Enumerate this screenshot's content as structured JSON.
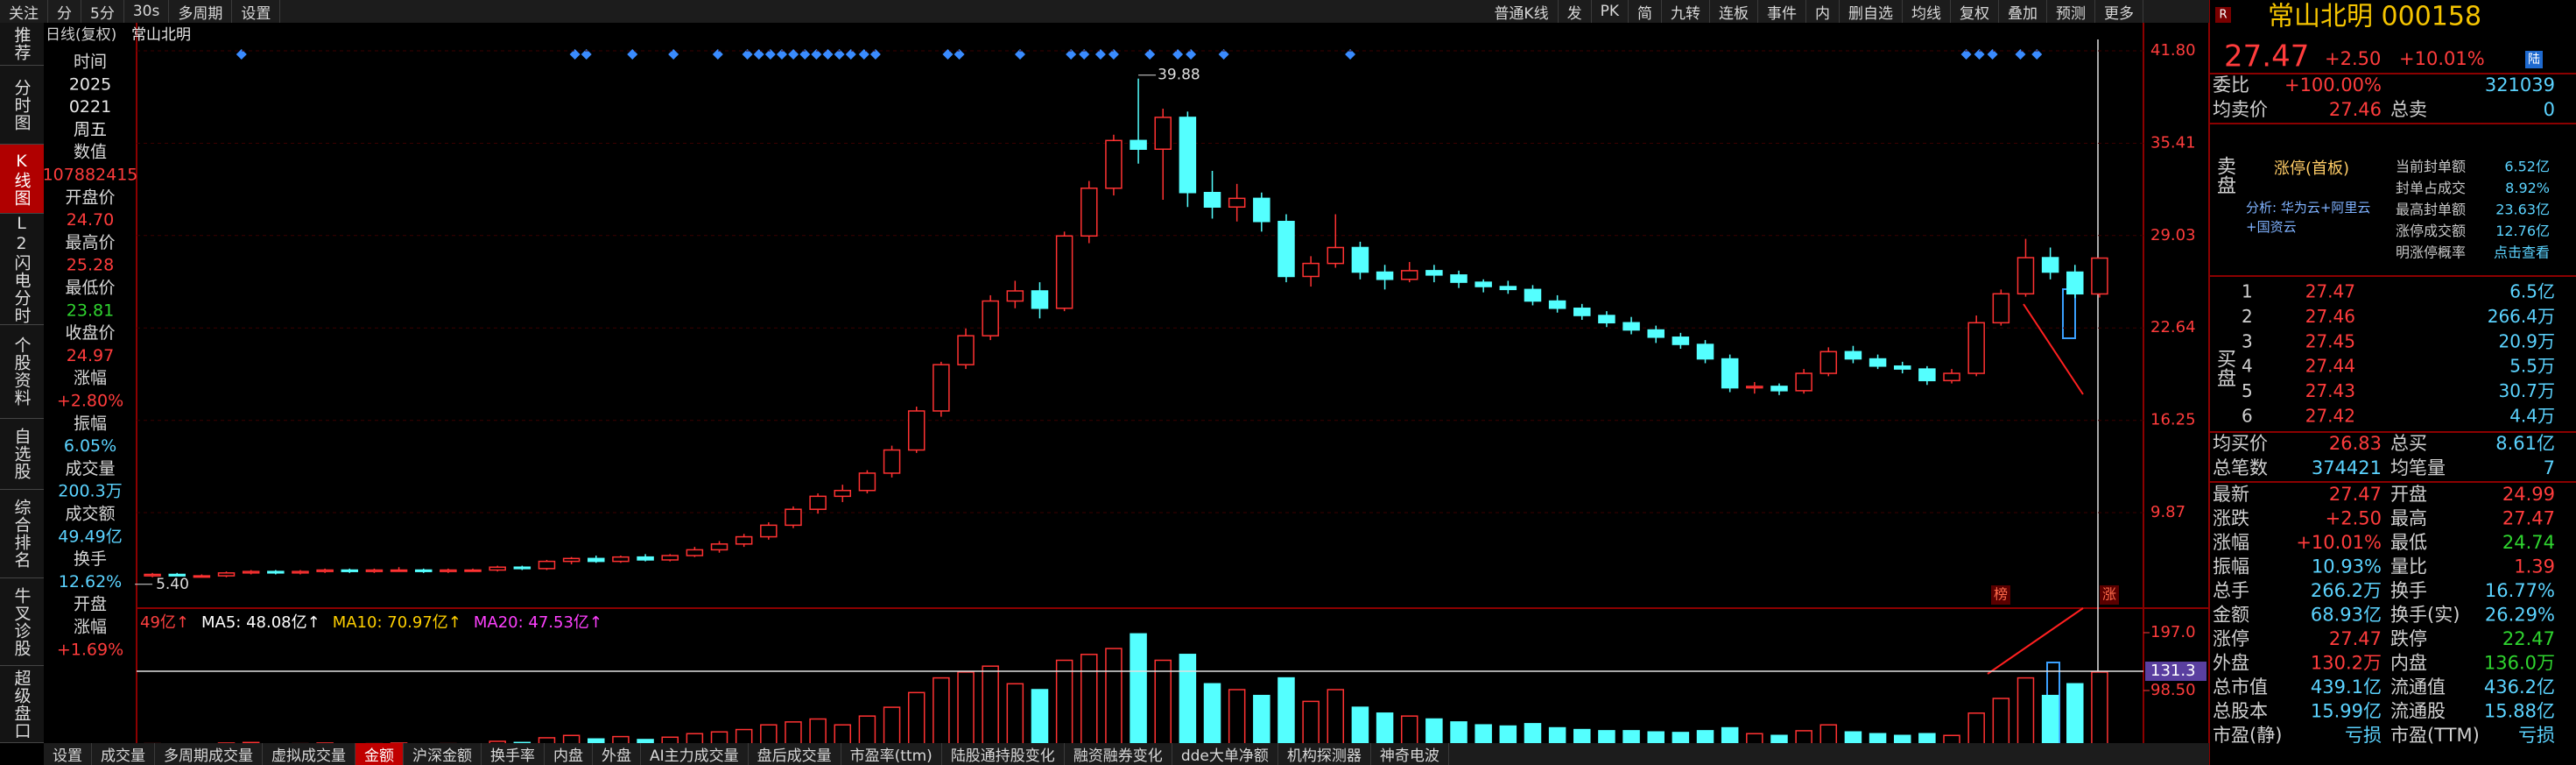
{
  "toolbar": {
    "left": [
      "关注",
      "分",
      "5分",
      "30s",
      "多周期",
      "设置"
    ],
    "right": [
      "普通K线",
      "发",
      "PK",
      "简",
      "九转",
      "连板",
      "事件",
      "内",
      "删自选",
      "均线",
      "复权",
      "叠加",
      "预测",
      "更多"
    ]
  },
  "side_tabs": {
    "items": [
      "推荐",
      "分时图",
      "K线图",
      "L2闪电分时",
      "个股资料",
      "自选股",
      "综合排名",
      "牛叉诊股",
      "超级盘口"
    ],
    "active": 2
  },
  "chart_header": {
    "period": "日线(复权)",
    "name": "常山北明"
  },
  "info_panel": [
    {
      "text": "时间",
      "color": "#d8d8d8"
    },
    {
      "text": "2025",
      "color": "#e8e8e8"
    },
    {
      "text": "0221",
      "color": "#e8e8e8"
    },
    {
      "text": "周五",
      "color": "#e8e8e8"
    },
    {
      "text": "数值",
      "color": "#d8d8d8"
    },
    {
      "text": "107882415",
      "color": "#ff3c3c"
    },
    {
      "text": "开盘价",
      "color": "#d8d8d8"
    },
    {
      "text": "24.70",
      "color": "#ff3c3c"
    },
    {
      "text": "最高价",
      "color": "#d8d8d8"
    },
    {
      "text": "25.28",
      "color": "#ff3c3c"
    },
    {
      "text": "最低价",
      "color": "#d8d8d8"
    },
    {
      "text": "23.81",
      "color": "#2fd52f"
    },
    {
      "text": "收盘价",
      "color": "#d8d8d8"
    },
    {
      "text": "24.97",
      "color": "#ff3c3c"
    },
    {
      "text": "涨幅",
      "color": "#d8d8d8"
    },
    {
      "text": "+2.80%",
      "color": "#ff3c3c"
    },
    {
      "text": "振幅",
      "color": "#d8d8d8"
    },
    {
      "text": "6.05%",
      "color": "#5bd3ff"
    },
    {
      "text": "成交量",
      "color": "#d8d8d8"
    },
    {
      "text": "200.3万",
      "color": "#5bd3ff"
    },
    {
      "text": "成交额",
      "color": "#d8d8d8"
    },
    {
      "text": "49.49亿",
      "color": "#5bd3ff"
    },
    {
      "text": "换手",
      "color": "#d8d8d8"
    },
    {
      "text": "12.62%",
      "color": "#5bd3ff"
    },
    {
      "text": "开盘",
      "color": "#d8d8d8"
    },
    {
      "text": "涨幅",
      "color": "#d8d8d8"
    },
    {
      "text": "+1.69%",
      "color": "#ff3c3c"
    }
  ],
  "kline": {
    "price_ticks": [
      {
        "value": 41.8,
        "label": "41.80"
      },
      35.41,
      29.03,
      22.64,
      16.25,
      9.87
    ],
    "high_label": "39.88",
    "low_label": "5.40",
    "markers": [
      "榜",
      "涨"
    ],
    "candles": [
      [
        5.5,
        5.7,
        5.4,
        5.6
      ],
      [
        5.6,
        5.7,
        5.5,
        5.5
      ],
      [
        5.5,
        5.6,
        5.4,
        5.5
      ],
      [
        5.5,
        5.8,
        5.4,
        5.7
      ],
      [
        5.7,
        5.9,
        5.6,
        5.8
      ],
      [
        5.8,
        5.9,
        5.6,
        5.7
      ],
      [
        5.7,
        5.9,
        5.6,
        5.8
      ],
      [
        5.8,
        6.0,
        5.7,
        5.9
      ],
      [
        5.9,
        6.0,
        5.7,
        5.8
      ],
      [
        5.8,
        6.0,
        5.7,
        5.9
      ],
      [
        5.9,
        6.1,
        5.8,
        5.9
      ],
      [
        5.9,
        6.0,
        5.7,
        5.8
      ],
      [
        5.8,
        6.0,
        5.7,
        5.9
      ],
      [
        5.9,
        6.0,
        5.8,
        5.9
      ],
      [
        5.9,
        6.2,
        5.8,
        6.1
      ],
      [
        6.1,
        6.2,
        5.9,
        6.0
      ],
      [
        6.0,
        6.6,
        5.9,
        6.5
      ],
      [
        6.5,
        6.8,
        6.3,
        6.7
      ],
      [
        6.7,
        6.9,
        6.4,
        6.5
      ],
      [
        6.5,
        6.9,
        6.4,
        6.8
      ],
      [
        6.8,
        7.0,
        6.5,
        6.6
      ],
      [
        6.6,
        7.0,
        6.5,
        6.9
      ],
      [
        6.9,
        7.5,
        6.8,
        7.3
      ],
      [
        7.3,
        7.9,
        7.1,
        7.7
      ],
      [
        7.7,
        8.4,
        7.5,
        8.2
      ],
      [
        8.2,
        9.2,
        8.0,
        9.0
      ],
      [
        9.0,
        10.3,
        8.8,
        10.1
      ],
      [
        10.1,
        11.2,
        9.8,
        11.0
      ],
      [
        11.0,
        11.8,
        10.6,
        11.4
      ],
      [
        11.4,
        12.8,
        11.2,
        12.6
      ],
      [
        12.6,
        14.5,
        12.3,
        14.2
      ],
      [
        14.2,
        17.2,
        14.0,
        16.9
      ],
      [
        16.9,
        20.3,
        16.5,
        20.1
      ],
      [
        20.1,
        22.6,
        19.8,
        22.1
      ],
      [
        22.1,
        24.9,
        21.8,
        24.5
      ],
      [
        24.5,
        25.9,
        24.0,
        25.2
      ],
      [
        25.2,
        25.8,
        23.3,
        24.0
      ],
      [
        24.0,
        29.3,
        23.8,
        29.0
      ],
      [
        29.0,
        32.8,
        28.5,
        32.3
      ],
      [
        32.3,
        36.0,
        31.8,
        35.6
      ],
      [
        35.6,
        39.88,
        34.0,
        35.0
      ],
      [
        35.0,
        37.8,
        31.5,
        37.2
      ],
      [
        37.2,
        37.6,
        31.0,
        32.0
      ],
      [
        32.0,
        33.5,
        30.2,
        31.0
      ],
      [
        31.0,
        32.6,
        30.0,
        31.6
      ],
      [
        31.6,
        32.0,
        29.3,
        30.0
      ],
      [
        30.0,
        30.5,
        25.8,
        26.2
      ],
      [
        26.2,
        27.6,
        25.5,
        27.1
      ],
      [
        27.1,
        30.5,
        26.8,
        28.2
      ],
      [
        28.2,
        28.6,
        26.0,
        26.5
      ],
      [
        26.5,
        27.0,
        25.3,
        26.0
      ],
      [
        26.0,
        27.2,
        25.8,
        26.6
      ],
      [
        26.6,
        27.0,
        25.8,
        26.3
      ],
      [
        26.3,
        26.6,
        25.4,
        25.8
      ],
      [
        25.8,
        26.0,
        25.1,
        25.5
      ],
      [
        25.5,
        25.9,
        25.0,
        25.3
      ],
      [
        25.3,
        25.6,
        24.2,
        24.5
      ],
      [
        24.5,
        24.9,
        23.7,
        24.0
      ],
      [
        24.0,
        24.3,
        23.2,
        23.5
      ],
      [
        23.5,
        23.8,
        22.7,
        23.0
      ],
      [
        23.0,
        23.4,
        22.2,
        22.5
      ],
      [
        22.5,
        22.8,
        21.6,
        22.0
      ],
      [
        22.0,
        22.3,
        21.2,
        21.5
      ],
      [
        21.5,
        21.8,
        20.2,
        20.5
      ],
      [
        20.5,
        20.8,
        18.2,
        18.5
      ],
      [
        18.5,
        18.9,
        18.1,
        18.6
      ],
      [
        18.6,
        18.8,
        18.0,
        18.3
      ],
      [
        18.3,
        19.8,
        18.1,
        19.5
      ],
      [
        19.5,
        21.3,
        19.3,
        21.0
      ],
      [
        21.0,
        21.4,
        20.2,
        20.5
      ],
      [
        20.5,
        20.8,
        19.8,
        20.0
      ],
      [
        20.0,
        20.3,
        19.5,
        19.8
      ],
      [
        19.8,
        20.0,
        18.7,
        19.0
      ],
      [
        19.0,
        19.8,
        18.8,
        19.5
      ],
      [
        19.5,
        23.5,
        19.3,
        23.0
      ],
      [
        23.0,
        25.3,
        22.8,
        25.0
      ],
      [
        25.0,
        28.8,
        24.8,
        27.5
      ],
      [
        27.5,
        28.2,
        26.0,
        26.5
      ],
      [
        26.5,
        27.0,
        24.7,
        25.0
      ],
      [
        24.99,
        27.47,
        24.74,
        27.47
      ]
    ]
  },
  "volume": {
    "indicators": [
      {
        "text": "49亿↑",
        "color": "#ff4040"
      },
      {
        "text": "MA5: 48.08亿↑",
        "color": "#ffffff"
      },
      {
        "text": "MA10: 70.97亿↑",
        "color": "#ffd000"
      },
      {
        "text": "MA20: 47.53亿↑",
        "color": "#ff40ff"
      }
    ],
    "ticks": [
      {
        "value": 197,
        "label": "197.0"
      },
      {
        "value": 98.5,
        "label": "98.50"
      }
    ],
    "cursor": 131.3,
    "values": [
      8,
      6,
      7,
      9,
      10,
      7,
      8,
      9,
      7,
      8,
      9,
      7,
      8,
      7,
      12,
      10,
      18,
      22,
      16,
      20,
      15,
      19,
      25,
      28,
      32,
      40,
      45,
      50,
      40,
      55,
      70,
      95,
      120,
      130,
      140,
      110,
      100,
      150,
      160,
      170,
      195,
      150,
      160,
      110,
      100,
      90,
      120,
      80,
      100,
      70,
      60,
      55,
      50,
      45,
      40,
      38,
      42,
      35,
      32,
      30,
      30,
      28,
      27,
      30,
      35,
      25,
      22,
      30,
      40,
      28,
      25,
      22,
      25,
      22,
      60,
      85,
      120,
      90,
      110,
      130
    ]
  },
  "bottom_tabs": {
    "items": [
      "设置",
      "成交量",
      "多周期成交量",
      "虚拟成交量",
      "金额",
      "沪深金额",
      "换手率",
      "内盘",
      "外盘",
      "AI主力成交量",
      "盘后成交量",
      "市盈率(ttm)",
      "陆股通持股变化",
      "融资融券变化",
      "dde大单净额",
      "机构探测器",
      "神奇电波"
    ],
    "active": 4
  },
  "quote": {
    "badge": "R",
    "title": "常山北明 000158",
    "price": "27.47",
    "change": "+2.50",
    "change_pct": "+10.01%",
    "tag": "陆",
    "rows_top": [
      {
        "cells": [
          "委比",
          "+100.00%",
          "",
          "321039"
        ],
        "colors": [
          "#ff3c3c",
          "#5bd3ff"
        ]
      },
      {
        "cells": [
          "均卖价",
          "27.46",
          "总卖",
          "0"
        ],
        "colors": [
          "#ff3c3c",
          "#5bd3ff"
        ]
      }
    ],
    "sell_label": "卖盘",
    "limit": {
      "title": "涨停(首板)",
      "analysis": "分析: 华为云+阿里云+国资云",
      "items": [
        [
          "当前封单额",
          "6.52亿"
        ],
        [
          "封单占成交",
          "8.92%"
        ],
        [
          "最高封单额",
          "23.63亿"
        ],
        [
          "涨停成交额",
          "12.76亿"
        ],
        [
          "明涨停概率",
          "点击查看"
        ]
      ]
    },
    "buy_label": "买盘",
    "bids": [
      [
        "1",
        "27.47",
        "6.5亿"
      ],
      [
        "2",
        "27.46",
        "266.4万"
      ],
      [
        "3",
        "27.45",
        "20.9万"
      ],
      [
        "4",
        "27.44",
        "5.5万"
      ],
      [
        "5",
        "27.43",
        "30.7万"
      ],
      [
        "6",
        "27.42",
        "4.4万"
      ]
    ],
    "rows_mid": [
      {
        "cells": [
          "均买价",
          "26.83",
          "总买",
          "8.61亿"
        ],
        "colors": [
          "#ff3c3c",
          "#5bd3ff"
        ]
      },
      {
        "cells": [
          "总笔数",
          "374421",
          "均笔量",
          "7"
        ],
        "colors": [
          "#5bd3ff",
          "#5bd3ff"
        ]
      }
    ],
    "stats": [
      {
        "cells": [
          "最新",
          "27.47",
          "开盘",
          "24.99"
        ],
        "colors": [
          "#ff3c3c",
          "#ff3c3c"
        ]
      },
      {
        "cells": [
          "涨跌",
          "+2.50",
          "最高",
          "27.47"
        ],
        "colors": [
          "#ff3c3c",
          "#ff3c3c"
        ]
      },
      {
        "cells": [
          "涨幅",
          "+10.01%",
          "最低",
          "24.74"
        ],
        "colors": [
          "#ff3c3c",
          "#2fd52f"
        ]
      },
      {
        "cells": [
          "振幅",
          "10.93%",
          "量比",
          "1.39"
        ],
        "colors": [
          "#5bd3ff",
          "#ff3c3c"
        ]
      },
      {
        "cells": [
          "总手",
          "266.2万",
          "换手",
          "16.77%"
        ],
        "colors": [
          "#5bd3ff",
          "#5bd3ff"
        ]
      },
      {
        "cells": [
          "金额",
          "68.93亿",
          "换手(实)",
          "26.29%"
        ],
        "colors": [
          "#5bd3ff",
          "#5bd3ff"
        ]
      },
      {
        "cells": [
          "涨停",
          "27.47",
          "跌停",
          "22.47"
        ],
        "colors": [
          "#ff3c3c",
          "#2fd52f"
        ]
      },
      {
        "cells": [
          "外盘",
          "130.2万",
          "内盘",
          "136.0万"
        ],
        "colors": [
          "#ff3c3c",
          "#2fd52f"
        ]
      },
      {
        "cells": [
          "总市值",
          "439.1亿",
          "流通值",
          "436.2亿"
        ],
        "colors": [
          "#5bd3ff",
          "#5bd3ff"
        ]
      },
      {
        "cells": [
          "总股本",
          "15.99亿",
          "流通股",
          "15.88亿"
        ],
        "colors": [
          "#5bd3ff",
          "#5bd3ff"
        ]
      },
      {
        "cells": [
          "市盈(静)",
          "亏损",
          "市盈(TTM)",
          "亏损"
        ],
        "colors": [
          "#5bd3ff",
          "#5bd3ff"
        ]
      }
    ]
  }
}
